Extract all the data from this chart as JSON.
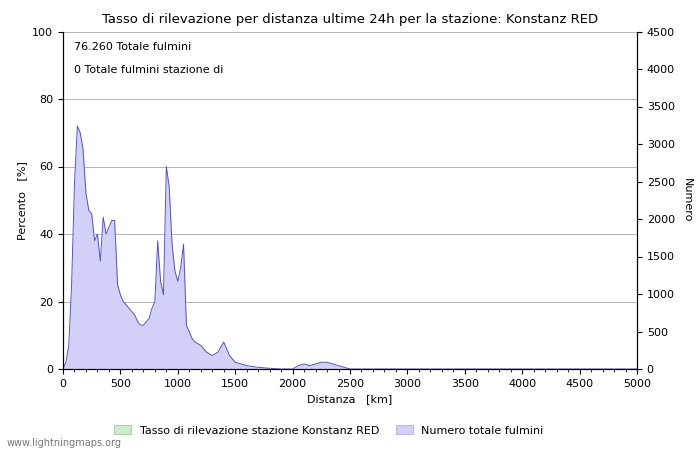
{
  "title": "Tasso di rilevazione per distanza ultime 24h per la stazione: Konstanz RED",
  "annotation_line1": "76.260 Totale fulmini",
  "annotation_line2": "0 Totale fulmini stazione di",
  "xlabel": "Distanza   [km]",
  "ylabel_left": "Percento   [%]",
  "ylabel_right": "Numero",
  "xlim": [
    0,
    5000
  ],
  "ylim_left": [
    0,
    100
  ],
  "ylim_right": [
    0,
    4500
  ],
  "yticks_left": [
    0,
    20,
    40,
    60,
    80,
    100
  ],
  "yticks_right": [
    0,
    500,
    1000,
    1500,
    2000,
    2500,
    3000,
    3500,
    4000,
    4500
  ],
  "xticks": [
    0,
    500,
    1000,
    1500,
    2000,
    2500,
    3000,
    3500,
    4000,
    4500,
    5000
  ],
  "fill_color_green": "#c8f0c8",
  "fill_color_blue": "#d0d0f8",
  "line_color": "#5555bb",
  "bg_color": "#ffffff",
  "grid_color": "#999999",
  "watermark": "www.lightningmaps.org",
  "legend_label1": "Tasso di rilevazione stazione Konstanz RED",
  "legend_label2": "Numero totale fulmini",
  "detection_rate": [
    [
      0,
      0
    ],
    [
      25,
      2
    ],
    [
      50,
      7
    ],
    [
      75,
      25
    ],
    [
      100,
      55
    ],
    [
      125,
      72
    ],
    [
      150,
      70
    ],
    [
      175,
      65
    ],
    [
      200,
      52
    ],
    [
      225,
      47
    ],
    [
      250,
      46
    ],
    [
      275,
      38
    ],
    [
      300,
      40
    ],
    [
      325,
      32
    ],
    [
      350,
      45
    ],
    [
      375,
      40
    ],
    [
      400,
      42
    ],
    [
      425,
      44
    ],
    [
      450,
      44
    ],
    [
      475,
      25
    ],
    [
      500,
      22
    ],
    [
      525,
      20
    ],
    [
      550,
      19
    ],
    [
      575,
      18
    ],
    [
      600,
      17
    ],
    [
      625,
      16
    ],
    [
      650,
      14
    ],
    [
      675,
      13
    ],
    [
      700,
      13
    ],
    [
      725,
      14
    ],
    [
      750,
      15
    ],
    [
      775,
      18
    ],
    [
      800,
      20
    ],
    [
      825,
      38
    ],
    [
      850,
      26
    ],
    [
      875,
      22
    ],
    [
      900,
      60
    ],
    [
      925,
      54
    ],
    [
      950,
      37
    ],
    [
      975,
      29
    ],
    [
      1000,
      26
    ],
    [
      1025,
      30
    ],
    [
      1050,
      37
    ],
    [
      1075,
      13
    ],
    [
      1100,
      11
    ],
    [
      1125,
      9
    ],
    [
      1150,
      8
    ],
    [
      1200,
      7
    ],
    [
      1250,
      5
    ],
    [
      1300,
      4
    ],
    [
      1350,
      5
    ],
    [
      1400,
      8
    ],
    [
      1450,
      4
    ],
    [
      1500,
      2
    ],
    [
      1600,
      1
    ],
    [
      1700,
      0.5
    ],
    [
      1800,
      0.2
    ],
    [
      1900,
      0
    ],
    [
      2000,
      0
    ],
    [
      2050,
      1
    ],
    [
      2100,
      1.5
    ],
    [
      2150,
      1
    ],
    [
      2200,
      1.5
    ],
    [
      2250,
      2
    ],
    [
      2300,
      2
    ],
    [
      2350,
      1.5
    ],
    [
      2400,
      1
    ],
    [
      2450,
      0.5
    ],
    [
      2500,
      0
    ],
    [
      3000,
      0
    ],
    [
      3500,
      0
    ],
    [
      4000,
      0
    ],
    [
      4500,
      0
    ],
    [
      5000,
      0
    ]
  ]
}
